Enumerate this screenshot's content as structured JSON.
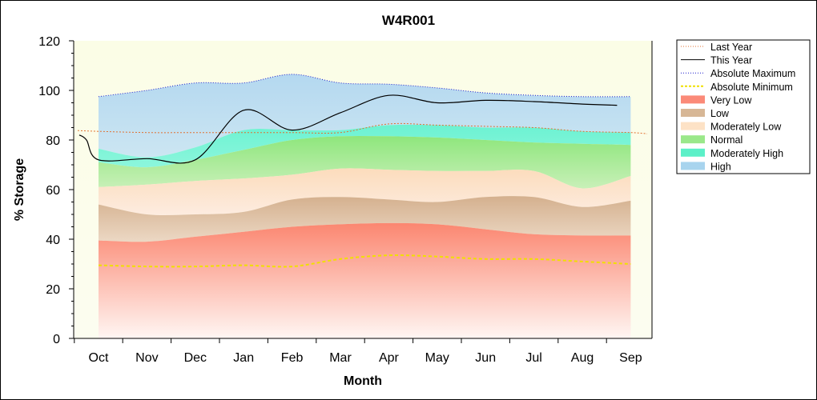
{
  "chart_data": {
    "type": "area",
    "title": "W4R001",
    "xlabel": "Month",
    "ylabel": "% Storage",
    "ylim": [
      0,
      120
    ],
    "yticks": [
      0,
      20,
      40,
      60,
      80,
      100,
      120
    ],
    "categories": [
      "Oct",
      "Nov",
      "Dec",
      "Jan",
      "Feb",
      "Mar",
      "Apr",
      "May",
      "Jun",
      "Jul",
      "Aug",
      "Sep"
    ],
    "bands": {
      "x": [
        "Oct",
        "Nov",
        "Dec",
        "Jan",
        "Feb",
        "Mar",
        "Apr",
        "May",
        "Jun",
        "Jul",
        "Aug",
        "Sep"
      ],
      "absolute_minimum": [
        29.5,
        29,
        29,
        29.5,
        29,
        32,
        33.5,
        33,
        32,
        32,
        31,
        30
      ],
      "very_low": [
        39.5,
        39,
        41,
        43,
        45,
        46,
        46.5,
        46,
        44,
        42,
        41.5,
        41.5
      ],
      "low": [
        54,
        50,
        50,
        51,
        56,
        57,
        56,
        55,
        57,
        57,
        53,
        55.5
      ],
      "moderately_low": [
        61,
        62,
        63.5,
        64.5,
        66,
        68.5,
        68,
        67.5,
        67.5,
        67.5,
        60.5,
        65.5
      ],
      "normal": [
        71,
        69,
        72,
        76,
        80,
        81.5,
        81.5,
        81,
        80,
        79,
        78.5,
        78
      ],
      "moderately_high": [
        76.5,
        73,
        77,
        84,
        84,
        84,
        86,
        86,
        85,
        85,
        83.5,
        83
      ],
      "absolute_maximum": [
        97.5,
        100,
        103,
        103,
        106.5,
        103,
        102.5,
        101,
        99,
        98,
        97.5,
        97.5
      ]
    },
    "series": [
      {
        "name": "Last Year",
        "color": "#e07030",
        "x": [
          "Oct",
          "Nov",
          "Dec",
          "Jan",
          "Feb",
          "Mar",
          "Apr",
          "May",
          "Jun",
          "Jul",
          "Aug",
          "Sep"
        ],
        "values": [
          83.5,
          83,
          83,
          83,
          83,
          83,
          86.5,
          86,
          85.5,
          85,
          83.5,
          83
        ]
      },
      {
        "name": "This Year",
        "color": "#000000",
        "x": [
          "Oct",
          "Nov",
          "Dec",
          "Jan",
          "Feb",
          "Mar",
          "Apr",
          "May",
          "Jun",
          "Jul",
          "Aug",
          "Sep"
        ],
        "values": [
          72,
          72.5,
          72,
          92,
          84,
          91,
          98,
          95,
          96,
          95.5,
          94.5,
          94
        ]
      }
    ],
    "legend": {
      "position": "right",
      "items": [
        {
          "label": "Last Year",
          "kind": "dotline",
          "color": "#e07030"
        },
        {
          "label": "This Year",
          "kind": "line",
          "color": "#000000"
        },
        {
          "label": "Absolute Maximum",
          "kind": "dotline",
          "color": "#1a1acc"
        },
        {
          "label": "Absolute Minimum",
          "kind": "dashline",
          "color": "#f0e000"
        },
        {
          "label": "Very Low",
          "kind": "fill",
          "color": "#fb8a78"
        },
        {
          "label": "Low",
          "kind": "fill",
          "color": "#d7b796"
        },
        {
          "label": "Moderately Low",
          "kind": "fill",
          "color": "#fde2c6"
        },
        {
          "label": "Normal",
          "kind": "fill",
          "color": "#9ae88a"
        },
        {
          "label": "Moderately High",
          "kind": "fill",
          "color": "#5cf0c8"
        },
        {
          "label": "High",
          "kind": "fill",
          "color": "#a8d4ee"
        }
      ]
    }
  }
}
